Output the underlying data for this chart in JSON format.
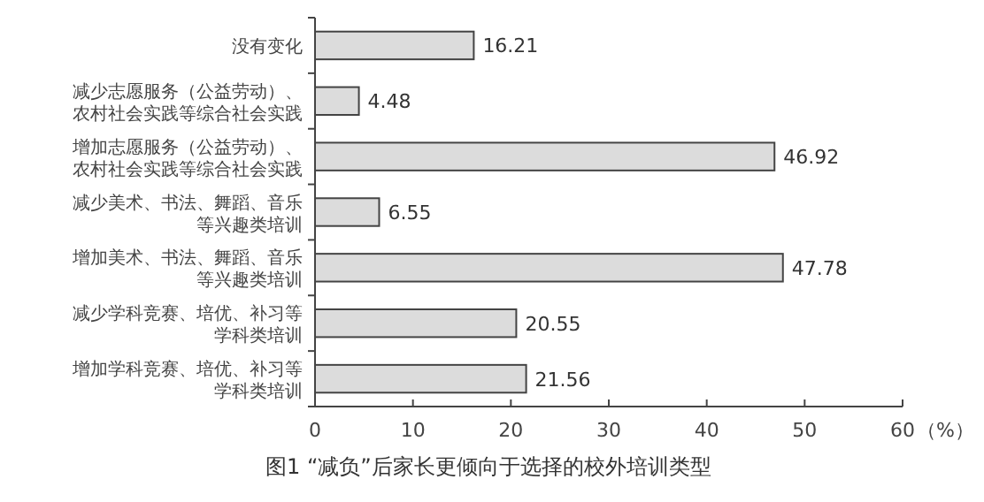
{
  "chart_data": {
    "type": "bar",
    "orientation": "horizontal",
    "title": "图1 “减负”后家长更倾向于选择的校外培训类型",
    "xlabel": "（%）",
    "categories": [
      "没有变化",
      "减少志愿服务（公益劳动）、农村社会实践等综合社会实践",
      "增加志愿服务（公益劳动）、农村社会实践等综合社会实践",
      "减少美术、书法、舞蹈、音乐等兴趣类培训",
      "增加美术、书法、舞蹈、音乐等兴趣类培训",
      "减少学科竞赛、培优、补习等学科类培训",
      "增加学科竞赛、培优、补习等学科类培训"
    ],
    "values": [
      16.21,
      4.48,
      46.92,
      6.55,
      47.78,
      20.55,
      21.56
    ],
    "color": "#dcdcdc",
    "data_labels": true,
    "xlim": [
      0,
      60
    ],
    "xticks": [
      0,
      10,
      20,
      30,
      40,
      50,
      60
    ],
    "grid": false
  }
}
